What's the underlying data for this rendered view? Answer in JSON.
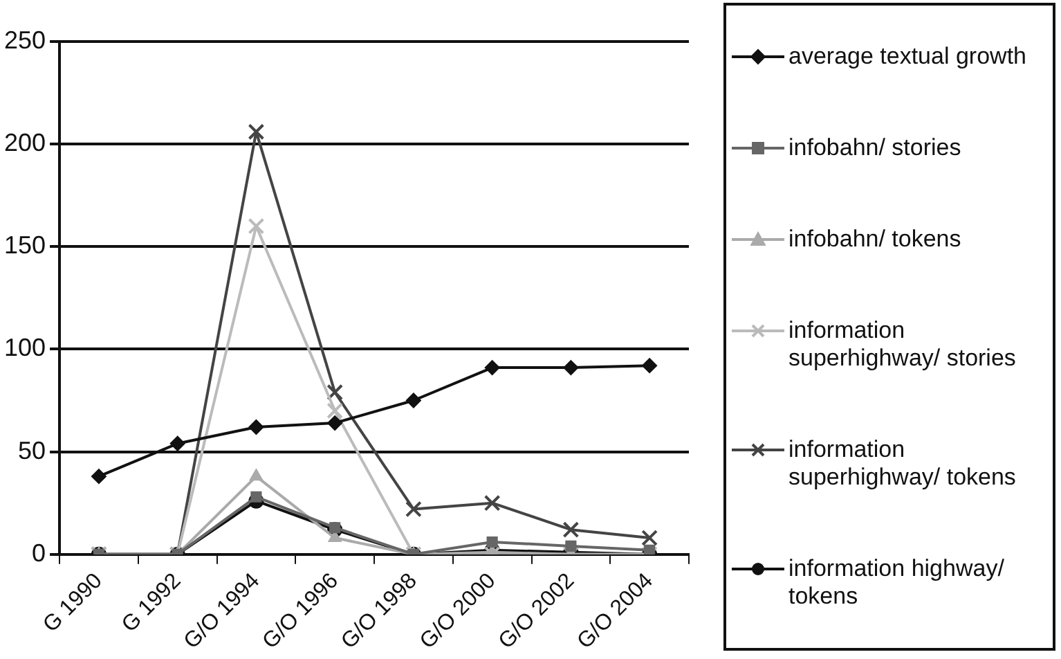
{
  "chart_data": {
    "type": "line",
    "categories": [
      "G 1990",
      "G 1992",
      "G/O 1994",
      "G/O 1996",
      "G/O 1998",
      "G/O 2000",
      "G/O 2002",
      "G/O 2004"
    ],
    "series": [
      {
        "name": "average textual growth",
        "color": "#111111",
        "marker": "diamond",
        "values": [
          38,
          54,
          62,
          64,
          75,
          91,
          91,
          92
        ]
      },
      {
        "name": "infobahn/ stories",
        "color": "#666666",
        "marker": "square",
        "values": [
          0,
          0,
          28,
          13,
          0,
          6,
          4,
          2
        ]
      },
      {
        "name": "infobahn/ tokens",
        "color": "#aaaaaa",
        "marker": "triangle",
        "values": [
          0,
          0,
          38,
          8,
          0,
          1,
          0,
          0
        ]
      },
      {
        "name": "information superhighway/ stories",
        "color": "#bbbbbb",
        "marker": "cross",
        "values": [
          0,
          0,
          160,
          70,
          0,
          0,
          0,
          0
        ]
      },
      {
        "name": "information superhighway/ tokens",
        "color": "#444444",
        "marker": "cross",
        "values": [
          0,
          0,
          206,
          79,
          22,
          25,
          12,
          8
        ]
      },
      {
        "name": "information highway/ tokens",
        "color": "#111111",
        "marker": "circle",
        "values": [
          0,
          0,
          26,
          12,
          0,
          2,
          1,
          0
        ]
      }
    ],
    "ylim": [
      0,
      250
    ],
    "yticks": [
      0,
      50,
      100,
      150,
      200,
      250
    ],
    "grid": "y",
    "legend": "right",
    "line_style": "solid"
  }
}
